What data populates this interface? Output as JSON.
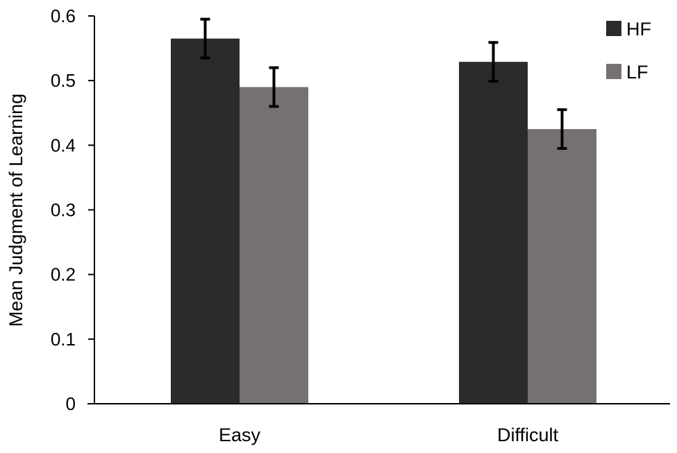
{
  "chart_data": {
    "type": "bar",
    "title": "",
    "xlabel": "",
    "ylabel": "Mean Judgment of Learning",
    "categories": [
      "Easy",
      "Difficult"
    ],
    "series": [
      {
        "name": "HF",
        "values": [
          0.565,
          0.529
        ],
        "errors": [
          0.03,
          0.03
        ],
        "color": "#2b2b2b"
      },
      {
        "name": "LF",
        "values": [
          0.49,
          0.425
        ],
        "errors": [
          0.03,
          0.03
        ],
        "color": "#767171"
      }
    ],
    "ylim": [
      0,
      0.6
    ],
    "yticks": [
      "0",
      "0.1",
      "0.2",
      "0.3",
      "0.4",
      "0.5",
      "0.6"
    ],
    "grid": false,
    "legend_position": "top-right"
  }
}
